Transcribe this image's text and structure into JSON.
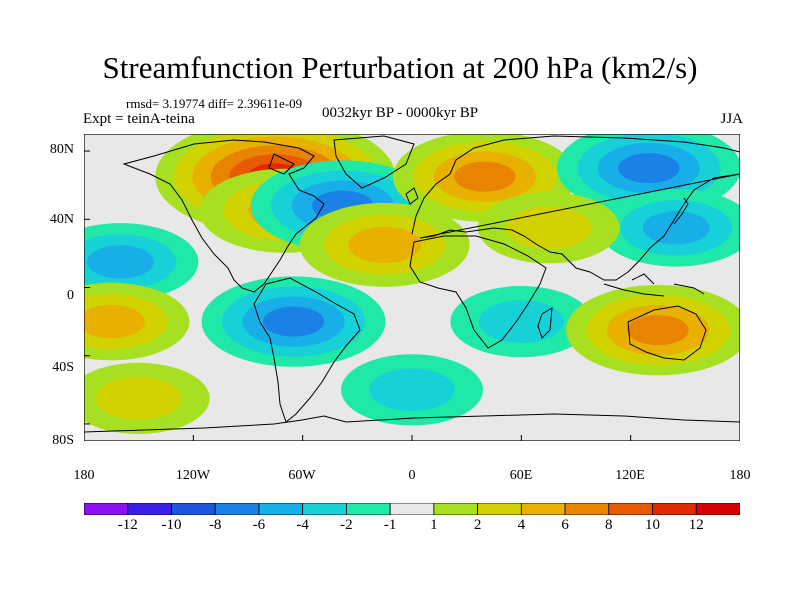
{
  "title": "Streamfunction Perturbation at 200 hPa (km2/s)",
  "stats": "rmsd= 3.19774 diff= 2.39611e-09",
  "left_label": "Expt = teinA-teina",
  "center_label": "0032kyr BP - 0000kyr BP",
  "right_label": "JJA",
  "lat_labels": [
    "80N",
    "40N",
    "0",
    "40S",
    "80S"
  ],
  "lon_labels": [
    "180",
    "120W",
    "60W",
    "0",
    "60E",
    "120E",
    "180"
  ],
  "colorbar": {
    "labels": [
      "-12",
      "-10",
      "-8",
      "-6",
      "-4",
      "-2",
      "-1",
      "1",
      "2",
      "4",
      "6",
      "8",
      "10",
      "12"
    ],
    "colors": [
      "#8a12f0",
      "#3a20e6",
      "#1e56dc",
      "#1a82e6",
      "#18aee8",
      "#16d2d8",
      "#20e8a8",
      "#e8e8e8",
      "#a6e020",
      "#d2d200",
      "#e8b000",
      "#e88400",
      "#e85a00",
      "#e02a00",
      "#d80000"
    ]
  },
  "chart_data": {
    "type": "heatmap",
    "projection": "cylindrical-equidistant",
    "variable": "streamfunction perturbation",
    "level": "200 hPa",
    "units": "km2/s",
    "season": "JJA",
    "lon_range": [
      -180,
      180
    ],
    "lat_range": [
      -90,
      90
    ],
    "features": [
      {
        "region": "northeastern North America / Hudson Bay",
        "lon": -75,
        "lat": 65,
        "value": 10
      },
      {
        "region": "North Atlantic (south of Greenland)",
        "lon": -70,
        "lat": 45,
        "value": 5
      },
      {
        "region": "northwest Atlantic",
        "lon": -38,
        "lat": 48,
        "value": -6
      },
      {
        "region": "northwest Africa / subtropical Atlantic",
        "lon": -15,
        "lat": 25,
        "value": 5
      },
      {
        "region": "Scandinavia / northern Russia",
        "lon": 40,
        "lat": 65,
        "value": 6
      },
      {
        "region": "eastern Siberia",
        "lon": 130,
        "lat": 70,
        "value": -6
      },
      {
        "region": "East Asia / North Pacific",
        "lon": 145,
        "lat": 35,
        "value": -4
      },
      {
        "region": "central Asia",
        "lon": 75,
        "lat": 35,
        "value": 3
      },
      {
        "region": "central tropical Pacific (north)",
        "lon": -160,
        "lat": 15,
        "value": -4
      },
      {
        "region": "South America / South Atlantic",
        "lon": -65,
        "lat": -20,
        "value": -6
      },
      {
        "region": "Indian Ocean",
        "lon": 60,
        "lat": -20,
        "value": -3
      },
      {
        "region": "Australia",
        "lon": 135,
        "lat": -25,
        "value": 6
      },
      {
        "region": "eastern tropical Pacific (south)",
        "lon": -165,
        "lat": -20,
        "value": 4
      },
      {
        "region": "Southern Ocean Pacific sector",
        "lon": -150,
        "lat": -65,
        "value": 3
      },
      {
        "region": "Southern Ocean Atlantic/Indian sector",
        "lon": 0,
        "lat": -60,
        "value": -3
      }
    ]
  }
}
